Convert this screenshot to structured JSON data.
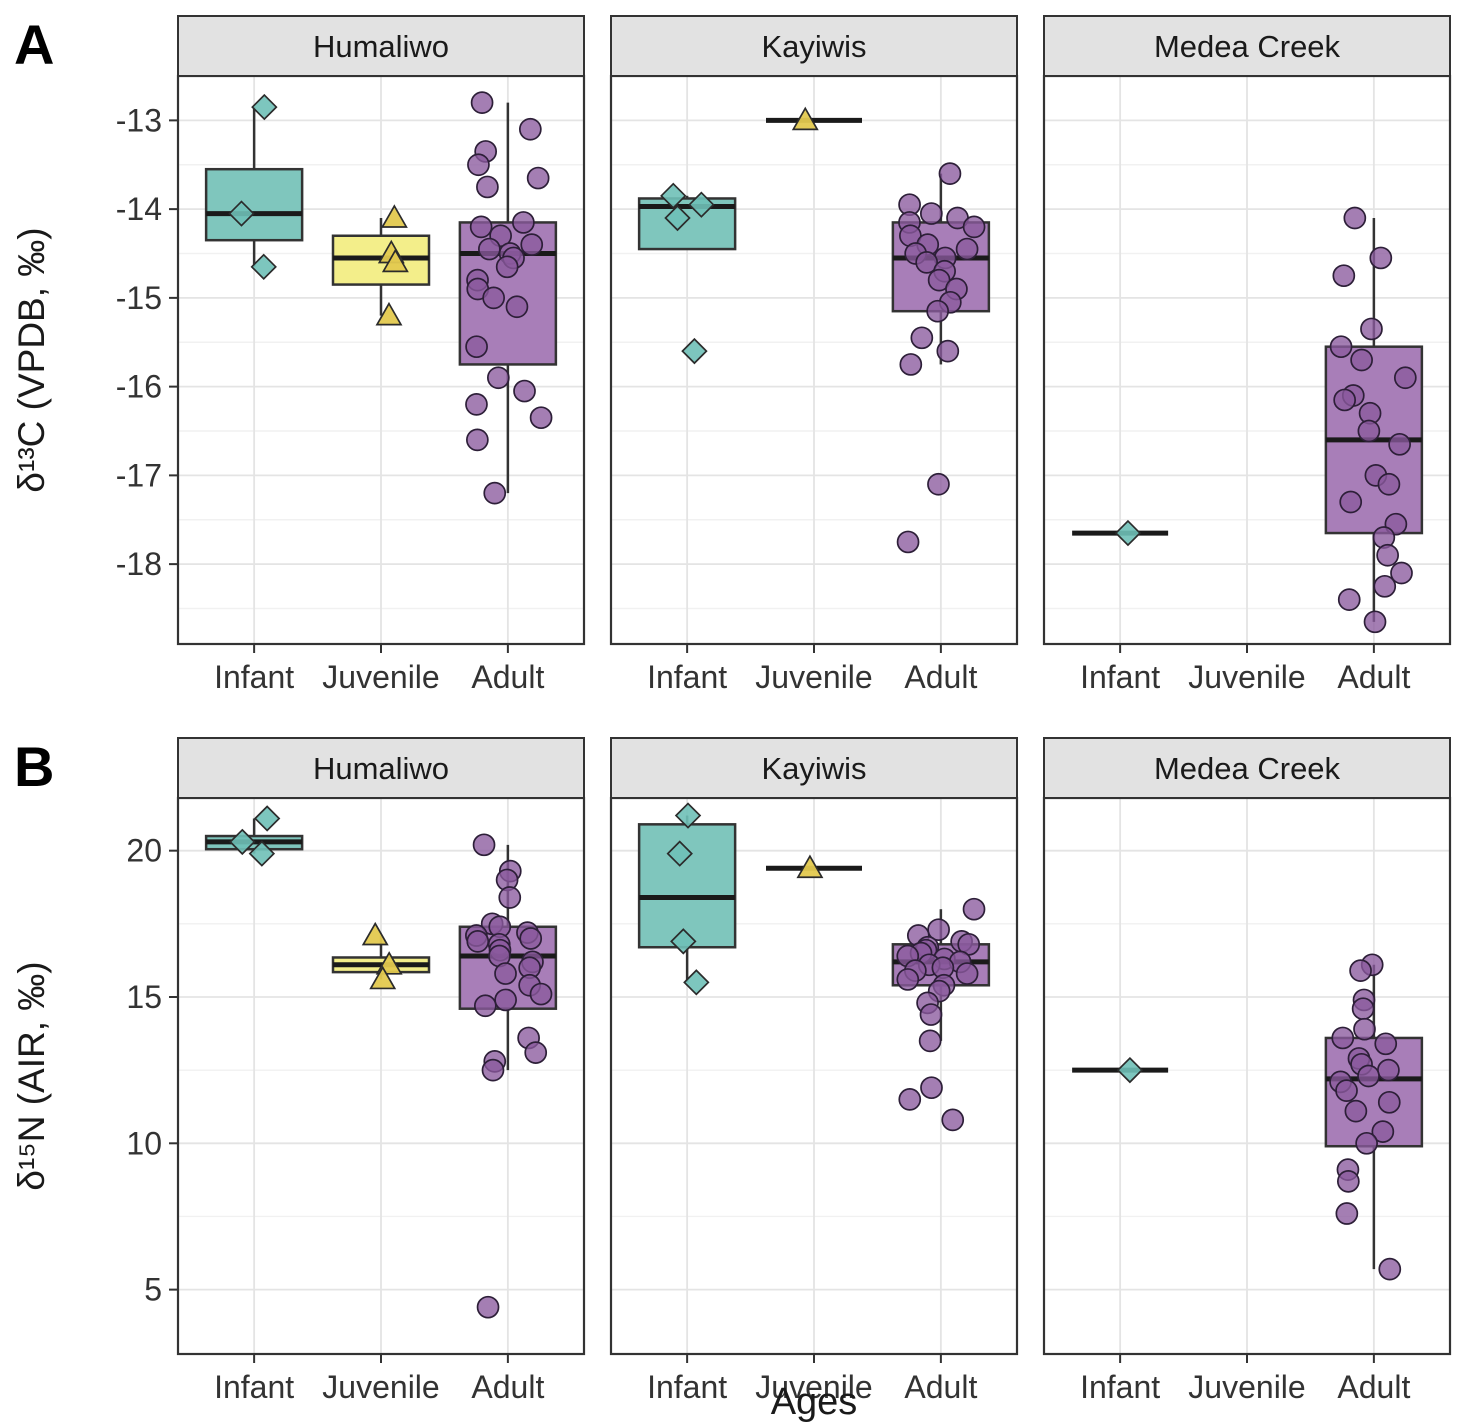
{
  "figure": {
    "xlabel": "Ages",
    "categories": [
      "Infant",
      "Juvenile",
      "Adult"
    ],
    "ages_style": [
      {
        "label": "Infant",
        "shape": "diamond",
        "box_fill": "#7fc6bd",
        "point_fill": "#6fc0b7"
      },
      {
        "label": "Juvenile",
        "shape": "triangle",
        "box_fill": "#f3ee8a",
        "point_fill": "#e3c94f"
      },
      {
        "label": "Adult",
        "shape": "circle",
        "box_fill": "#a87eb8",
        "point_fill": "#8a5a9d"
      }
    ],
    "colors": {
      "panel_border": "#333333",
      "strip_fill": "#e2e2e2",
      "grid_major": "#e4e4e4",
      "grid_minor": "#f1f1f1",
      "median": "#1a1a1a",
      "text": "#333333"
    }
  },
  "chart_data": [
    {
      "type": "boxplot",
      "panel_label": "A",
      "ylabel": "δ¹³C (VPDB, ‰)",
      "ylim": [
        -18.9,
        -12.5
      ],
      "yticks": [
        -13,
        -14,
        -15,
        -16,
        -17,
        -18
      ],
      "facets": [
        {
          "name": "Humaliwo",
          "groups": [
            {
              "age": "Infant",
              "stats": [
                -14.65,
                -14.35,
                -14.05,
                -13.55,
                -12.85
              ],
              "points": [
                -12.85,
                -14.05,
                -14.65
              ]
            },
            {
              "age": "Juvenile",
              "stats": [
                -15.2,
                -14.85,
                -14.55,
                -14.3,
                -14.1
              ],
              "points": [
                -14.1,
                -14.5,
                -14.6,
                -15.2
              ]
            },
            {
              "age": "Adult",
              "stats": [
                -17.2,
                -15.75,
                -14.5,
                -14.15,
                -12.8
              ],
              "points": [
                -12.8,
                -13.1,
                -13.35,
                -13.5,
                -13.65,
                -13.75,
                -14.15,
                -14.2,
                -14.3,
                -14.4,
                -14.45,
                -14.5,
                -14.55,
                -14.65,
                -14.8,
                -14.9,
                -15.0,
                -15.1,
                -15.55,
                -15.9,
                -16.05,
                -16.2,
                -16.35,
                -16.6,
                -17.2
              ]
            }
          ]
        },
        {
          "name": "Kayiwis",
          "groups": [
            {
              "age": "Infant",
              "stats": [
                -14.1,
                -14.45,
                -13.97,
                -13.88,
                -13.85
              ],
              "points": [
                -13.85,
                -13.95,
                -14.1,
                -15.6
              ]
            },
            {
              "age": "Juvenile",
              "stats": [
                -13.0,
                -13.0,
                -13.0,
                -13.0,
                -13.0
              ],
              "points": [
                -13.0
              ]
            },
            {
              "age": "Adult",
              "stats": [
                -15.75,
                -15.15,
                -14.55,
                -14.15,
                -13.6
              ],
              "points": [
                -13.6,
                -13.95,
                -14.05,
                -14.1,
                -14.15,
                -14.2,
                -14.3,
                -14.4,
                -14.45,
                -14.5,
                -14.55,
                -14.6,
                -14.7,
                -14.8,
                -14.9,
                -15.05,
                -15.15,
                -15.45,
                -15.6,
                -15.75,
                -17.1,
                -17.75
              ]
            }
          ]
        },
        {
          "name": "Medea Creek",
          "groups": [
            {
              "age": "Infant",
              "stats": [
                -17.65,
                -17.65,
                -17.65,
                -17.65,
                -17.65
              ],
              "points": [
                -17.65
              ]
            },
            {
              "age": "Juvenile",
              "stats": null,
              "points": []
            },
            {
              "age": "Adult",
              "stats": [
                -18.65,
                -17.65,
                -16.6,
                -15.55,
                -14.1
              ],
              "points": [
                -14.1,
                -14.55,
                -14.75,
                -15.35,
                -15.55,
                -15.7,
                -15.9,
                -16.1,
                -16.15,
                -16.3,
                -16.5,
                -16.65,
                -17.0,
                -17.1,
                -17.3,
                -17.55,
                -17.7,
                -17.9,
                -18.1,
                -18.25,
                -18.4,
                -18.65
              ]
            }
          ]
        }
      ]
    },
    {
      "type": "boxplot",
      "panel_label": "B",
      "ylabel": "δ¹⁵N (AIR, ‰)",
      "ylim": [
        2.8,
        21.8
      ],
      "yticks": [
        20,
        15,
        10,
        5
      ],
      "facets": [
        {
          "name": "Humaliwo",
          "groups": [
            {
              "age": "Infant",
              "stats": [
                19.9,
                20.05,
                20.3,
                20.5,
                21.1
              ],
              "points": [
                21.1,
                20.3,
                19.9
              ]
            },
            {
              "age": "Juvenile",
              "stats": [
                15.6,
                15.85,
                16.1,
                16.35,
                17.1
              ],
              "points": [
                17.1,
                16.1,
                15.6
              ]
            },
            {
              "age": "Adult",
              "stats": [
                12.5,
                14.6,
                16.4,
                17.4,
                20.2
              ],
              "points": [
                20.2,
                19.3,
                19.0,
                18.4,
                17.5,
                17.4,
                17.2,
                17.1,
                17.0,
                16.9,
                16.8,
                16.6,
                16.4,
                16.2,
                16.0,
                15.8,
                15.4,
                15.1,
                14.9,
                14.7,
                13.6,
                13.1,
                12.8,
                12.5,
                4.4
              ]
            }
          ]
        },
        {
          "name": "Kayiwis",
          "groups": [
            {
              "age": "Infant",
              "stats": [
                15.5,
                16.7,
                18.4,
                20.9,
                21.2
              ],
              "points": [
                21.2,
                19.9,
                16.9,
                15.5
              ]
            },
            {
              "age": "Juvenile",
              "stats": [
                19.4,
                19.4,
                19.4,
                19.4,
                19.4
              ],
              "points": [
                19.4
              ]
            },
            {
              "age": "Adult",
              "stats": [
                13.5,
                15.4,
                16.2,
                16.8,
                18.0
              ],
              "points": [
                18.0,
                17.3,
                17.1,
                16.9,
                16.8,
                16.7,
                16.6,
                16.5,
                16.4,
                16.3,
                16.2,
                16.1,
                16.0,
                15.9,
                15.8,
                15.6,
                15.4,
                15.2,
                14.8,
                14.4,
                13.5,
                11.9,
                11.5,
                10.8
              ]
            }
          ]
        },
        {
          "name": "Medea Creek",
          "groups": [
            {
              "age": "Infant",
              "stats": [
                12.5,
                12.5,
                12.5,
                12.5,
                12.5
              ],
              "points": [
                12.5
              ]
            },
            {
              "age": "Juvenile",
              "stats": null,
              "points": []
            },
            {
              "age": "Adult",
              "stats": [
                5.7,
                9.9,
                12.2,
                13.6,
                16.1
              ],
              "points": [
                16.1,
                15.9,
                14.9,
                14.6,
                13.9,
                13.6,
                13.4,
                12.9,
                12.7,
                12.5,
                12.3,
                12.1,
                11.8,
                11.4,
                11.1,
                10.4,
                10.0,
                9.1,
                8.7,
                7.6,
                5.7
              ]
            }
          ]
        }
      ]
    }
  ]
}
